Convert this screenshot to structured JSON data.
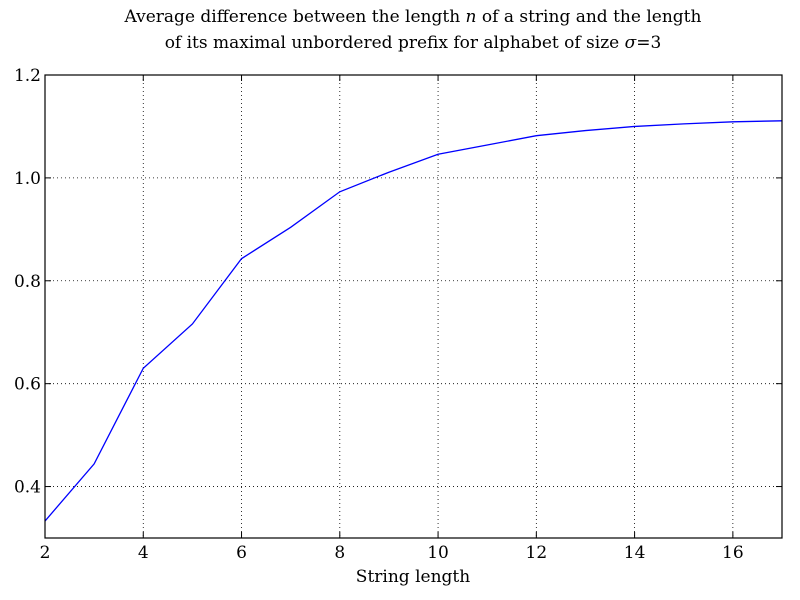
{
  "chart_data": {
    "type": "line",
    "title": "Average difference between the length n of a string and the length of its maximal unbordered prefix for alphabet of size σ=3",
    "title_lines": [
      {
        "before": "Average difference between the length ",
        "var": "n",
        "after": " of a string and the length"
      },
      {
        "before": "of its maximal unbordered prefix for alphabet of size ",
        "var": "σ",
        "after": "=3"
      }
    ],
    "xlabel": "String length",
    "ylabel": "",
    "xlim": [
      2,
      17
    ],
    "ylim": [
      0.3,
      1.2
    ],
    "xticks": [
      2,
      4,
      6,
      8,
      10,
      12,
      14,
      16
    ],
    "yticks": [
      0.4,
      0.6,
      0.8,
      1.0,
      1.2
    ],
    "ytick_labels": [
      "0.4",
      "0.6",
      "0.8",
      "1.0",
      "1.2"
    ],
    "grid": true,
    "series": [
      {
        "color": "#0000ff",
        "x": [
          2,
          3,
          4,
          5,
          6,
          7,
          8,
          9,
          10,
          11,
          12,
          13,
          14,
          15,
          16,
          17
        ],
        "y": [
          0.333,
          0.444,
          0.63,
          0.716,
          0.843,
          0.904,
          0.973,
          1.011,
          1.046,
          1.064,
          1.082,
          1.092,
          1.1,
          1.105,
          1.109,
          1.111
        ]
      }
    ]
  }
}
